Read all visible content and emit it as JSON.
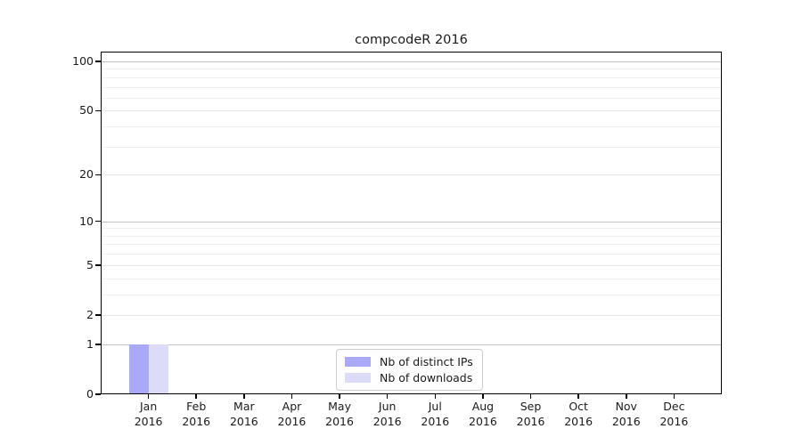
{
  "chart_data": {
    "type": "bar",
    "title": "compcodeR 2016",
    "categories": [
      "Jan",
      "Feb",
      "Mar",
      "Apr",
      "May",
      "Jun",
      "Jul",
      "Aug",
      "Sep",
      "Oct",
      "Nov",
      "Dec"
    ],
    "category_year": "2016",
    "series": [
      {
        "name": "Nb of distinct IPs",
        "color": "#a9a9f8",
        "values": [
          1,
          0,
          0,
          0,
          0,
          0,
          0,
          0,
          0,
          0,
          0,
          0
        ]
      },
      {
        "name": "Nb of downloads",
        "color": "#dcdcf8",
        "values": [
          1,
          0,
          0,
          0,
          0,
          0,
          0,
          0,
          0,
          0,
          0,
          0
        ]
      }
    ],
    "xlabel": "",
    "ylabel": "",
    "y_scale": "log1p",
    "ylim": [
      0,
      100
    ],
    "y_ticks": [
      0,
      1,
      2,
      5,
      10,
      20,
      50,
      100
    ],
    "y_decade_gridlines": [
      1,
      10,
      100
    ],
    "y_minor_gridlines": [
      3,
      4,
      6,
      7,
      8,
      9,
      30,
      40,
      60,
      70,
      80,
      90
    ],
    "grid": true,
    "legend_position": "lower-center-inside",
    "colors": {
      "decade_gridline": "#c2c2c2",
      "major_gridline": "#e4e4e4",
      "minor_gridline": "#efefef",
      "axis": "#000000",
      "text": "#1a1a1a",
      "legend_border": "#cccccc",
      "background": "#ffffff"
    }
  }
}
